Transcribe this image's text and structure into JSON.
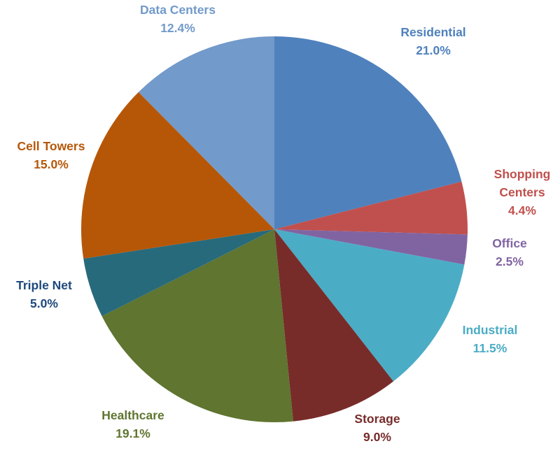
{
  "chart_data": {
    "type": "pie",
    "title": "",
    "start_angle_deg": 0,
    "direction": "clockwise",
    "slices": [
      {
        "name": "Residential",
        "value": 21.0,
        "value_label": "21.0%",
        "color": "#4F81BD",
        "label_color": "#4F81BD",
        "label_lines": [
          "Residential"
        ]
      },
      {
        "name": "Shopping Centers",
        "value": 4.4,
        "value_label": "4.4%",
        "color": "#C0504D",
        "label_color": "#C0504D",
        "label_lines": [
          "Shopping",
          "Centers"
        ]
      },
      {
        "name": "Office",
        "value": 2.5,
        "value_label": "2.5%",
        "color": "#8064A2",
        "label_color": "#8064A2",
        "label_lines": [
          "Office"
        ]
      },
      {
        "name": "Industrial",
        "value": 11.5,
        "value_label": "11.5%",
        "color": "#4BACC6",
        "label_color": "#4BACC6",
        "label_lines": [
          "Industrial"
        ]
      },
      {
        "name": "Storage",
        "value": 9.0,
        "value_label": "9.0%",
        "color": "#772C2A",
        "label_color": "#772C2A",
        "label_lines": [
          "Storage"
        ]
      },
      {
        "name": "Healthcare",
        "value": 19.1,
        "value_label": "19.1%",
        "color": "#5F7530",
        "label_color": "#5F7530",
        "label_lines": [
          "Healthcare"
        ]
      },
      {
        "name": "Triple Net",
        "value": 5.0,
        "value_label": "5.0%",
        "color": "#276A7C",
        "label_color": "#1F497D",
        "label_lines": [
          "Triple Net"
        ]
      },
      {
        "name": "Cell Towers",
        "value": 15.0,
        "value_label": "15.0%",
        "color": "#B65708",
        "label_color": "#B65708",
        "label_lines": [
          "Cell Towers"
        ]
      },
      {
        "name": "Data Centers",
        "value": 12.4,
        "value_label": "12.4%",
        "color": "#729ACA",
        "label_color": "#729ACA",
        "label_lines": [
          "Data Centers"
        ]
      }
    ]
  }
}
